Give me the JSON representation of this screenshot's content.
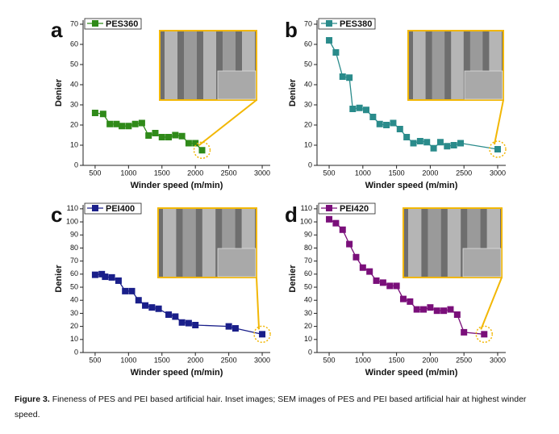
{
  "chart_data": [
    {
      "type": "line",
      "panel_label": "a",
      "xlabel": "Winder speed (m/min)",
      "ylabel": "Denier",
      "x": [
        500,
        620,
        720,
        820,
        900,
        1000,
        1100,
        1200,
        1300,
        1400,
        1500,
        1600,
        1700,
        1800,
        1900,
        2000,
        2100
      ],
      "series": [
        {
          "name": "PES360",
          "color": "#2f8a19",
          "values": [
            26,
            25.5,
            20.5,
            20.5,
            19.5,
            19.5,
            20.5,
            21,
            14.8,
            16,
            14,
            14,
            15,
            14.5,
            11,
            11,
            7.5
          ]
        }
      ],
      "xlim": [
        320,
        3120
      ],
      "xticks": [
        500,
        1000,
        1500,
        2000,
        2500,
        3000
      ],
      "ylim": [
        0,
        72
      ],
      "yticks": [
        0,
        10,
        20,
        30,
        40,
        50,
        60,
        70
      ]
    },
    {
      "type": "line",
      "panel_label": "b",
      "xlabel": "Winder speed (m/min)",
      "ylabel": "Denier",
      "x": [
        500,
        600,
        700,
        800,
        850,
        950,
        1050,
        1150,
        1250,
        1350,
        1450,
        1550,
        1650,
        1750,
        1850,
        1950,
        2050,
        2150,
        2250,
        2350,
        2450,
        3000
      ],
      "series": [
        {
          "name": "PES380",
          "color": "#2a8b8b",
          "values": [
            62,
            56,
            44,
            43.5,
            28,
            28.5,
            27.5,
            24,
            20.5,
            20,
            21,
            18,
            14,
            11,
            12,
            11.5,
            8.5,
            11.5,
            9.5,
            10,
            11,
            8
          ]
        }
      ],
      "xlim": [
        320,
        3120
      ],
      "xticks": [
        500,
        1000,
        1500,
        2000,
        2500,
        3000
      ],
      "ylim": [
        0,
        72
      ],
      "yticks": [
        0,
        10,
        20,
        30,
        40,
        50,
        60,
        70
      ]
    },
    {
      "type": "line",
      "panel_label": "c",
      "xlabel": "Winder speed (m/min)",
      "ylabel": "Denier",
      "x": [
        500,
        600,
        650,
        750,
        850,
        950,
        1050,
        1150,
        1250,
        1350,
        1450,
        1600,
        1700,
        1800,
        1900,
        2000,
        2500,
        2600,
        3000
      ],
      "series": [
        {
          "name": "PEI400",
          "color": "#1a1f8a",
          "values": [
            59.5,
            60,
            58,
            57.5,
            55,
            47,
            47,
            40,
            36,
            34.5,
            33.5,
            29,
            27.5,
            23,
            22.5,
            21,
            20,
            18.5,
            14
          ]
        }
      ],
      "xlim": [
        320,
        3120
      ],
      "xticks": [
        500,
        1000,
        1500,
        2000,
        2500,
        3000
      ],
      "ylim": [
        0,
        113
      ],
      "yticks": [
        0,
        10,
        20,
        30,
        40,
        50,
        60,
        70,
        80,
        90,
        100,
        110
      ]
    },
    {
      "type": "line",
      "panel_label": "d",
      "xlabel": "Winder speed (m/min)",
      "ylabel": "Denier",
      "x": [
        500,
        600,
        700,
        800,
        900,
        1000,
        1100,
        1200,
        1300,
        1400,
        1500,
        1600,
        1700,
        1800,
        1900,
        2000,
        2100,
        2200,
        2300,
        2400,
        2500,
        2800
      ],
      "series": [
        {
          "name": "PEI420",
          "color": "#7a0f7a",
          "values": [
            102,
            99,
            94,
            83,
            73,
            65,
            62,
            55,
            53.5,
            51,
            51,
            41,
            39,
            33,
            33,
            34.5,
            32,
            32,
            33,
            29,
            15.5,
            14
          ]
        }
      ],
      "xlim": [
        320,
        3120
      ],
      "xticks": [
        500,
        1000,
        1500,
        2000,
        2500,
        3000
      ],
      "ylim": [
        0,
        113
      ],
      "yticks": [
        0,
        10,
        20,
        30,
        40,
        50,
        60,
        70,
        80,
        90,
        100,
        110
      ]
    }
  ],
  "caption": {
    "label": "Figure 3.",
    "text": "Fineness of PES and PEI based artificial hair. Inset images; SEM images of PES and PEI based artificial hair at highest winder speed."
  }
}
